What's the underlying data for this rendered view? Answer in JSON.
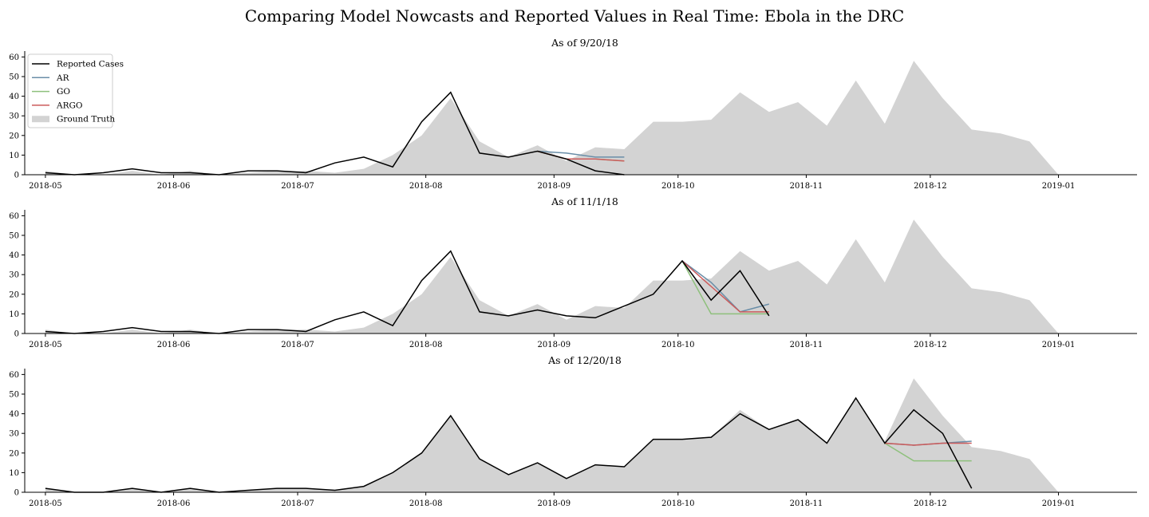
{
  "title": "Comparing Model Nowcasts and Reported Values in Real Time: Ebola in the DRC",
  "colors": {
    "reported": "#000000",
    "ar": "#6a8ea8",
    "go": "#8ec07c",
    "argo": "#cc5b5b",
    "ground_truth": "#d3d3d3"
  },
  "chart_data": [
    {
      "type": "line",
      "title": "As of 9/20/18",
      "xlabel": "",
      "ylabel": "",
      "ylim": [
        0,
        63
      ],
      "grid": false,
      "legend": "top-left",
      "x_ticks": [
        "2018-05",
        "2018-06",
        "2018-07",
        "2018-08",
        "2018-09",
        "2018-10",
        "2018-11",
        "2018-12",
        "2019-01"
      ],
      "y_ticks": [
        0,
        10,
        20,
        30,
        40,
        50,
        60
      ],
      "legend_entries": [
        "Reported Cases",
        "AR",
        "GO",
        "ARGO",
        "Ground Truth"
      ],
      "ground_truth": {
        "x": [
          "2018-05-01",
          "2018-05-08",
          "2018-05-15",
          "2018-05-22",
          "2018-05-29",
          "2018-06-05",
          "2018-06-12",
          "2018-06-19",
          "2018-06-26",
          "2018-07-03",
          "2018-07-10",
          "2018-07-17",
          "2018-07-24",
          "2018-07-31",
          "2018-08-07",
          "2018-08-14",
          "2018-08-21",
          "2018-08-28",
          "2018-09-04",
          "2018-09-11",
          "2018-09-18",
          "2018-09-25",
          "2018-10-02",
          "2018-10-09",
          "2018-10-16",
          "2018-10-23",
          "2018-10-30",
          "2018-11-06",
          "2018-11-13",
          "2018-11-20",
          "2018-11-27",
          "2018-12-04",
          "2018-12-11",
          "2018-12-18",
          "2018-12-25",
          "2019-01-01"
        ],
        "values": [
          2,
          0,
          0,
          2,
          0,
          2,
          0,
          1,
          2,
          2,
          1,
          3,
          10,
          20,
          39,
          17,
          9,
          15,
          7,
          14,
          13,
          27,
          27,
          28,
          42,
          32,
          37,
          25,
          48,
          26,
          58,
          39,
          23,
          21,
          17,
          0
        ]
      },
      "series": [
        {
          "name": "Reported Cases",
          "x": [
            "2018-05-01",
            "2018-05-08",
            "2018-05-15",
            "2018-05-22",
            "2018-05-29",
            "2018-06-05",
            "2018-06-12",
            "2018-06-19",
            "2018-06-26",
            "2018-07-03",
            "2018-07-10",
            "2018-07-17",
            "2018-07-24",
            "2018-07-31",
            "2018-08-07",
            "2018-08-14",
            "2018-08-21",
            "2018-08-28",
            "2018-09-04",
            "2018-09-11",
            "2018-09-18"
          ],
          "values": [
            1,
            0,
            1,
            3,
            1,
            1,
            0,
            2,
            2,
            1,
            6,
            9,
            4,
            27,
            42,
            11,
            9,
            12,
            8,
            2,
            0
          ]
        },
        {
          "name": "AR",
          "x": [
            "2018-08-28",
            "2018-09-04",
            "2018-09-11",
            "2018-09-18"
          ],
          "values": [
            12,
            11,
            9,
            9
          ]
        },
        {
          "name": "GO",
          "x": [
            "2018-08-28",
            "2018-09-04",
            "2018-09-11",
            "2018-09-18"
          ],
          "values": [
            12,
            8,
            8,
            7
          ]
        },
        {
          "name": "ARGO",
          "x": [
            "2018-08-28",
            "2018-09-04",
            "2018-09-11",
            "2018-09-18"
          ],
          "values": [
            12,
            8,
            8,
            7
          ]
        }
      ]
    },
    {
      "type": "line",
      "title": "As of 11/1/18",
      "xlabel": "",
      "ylabel": "",
      "ylim": [
        0,
        63
      ],
      "grid": false,
      "x_ticks": [
        "2018-05",
        "2018-06",
        "2018-07",
        "2018-08",
        "2018-09",
        "2018-10",
        "2018-11",
        "2018-12",
        "2019-01"
      ],
      "y_ticks": [
        0,
        10,
        20,
        30,
        40,
        50,
        60
      ],
      "ground_truth": {
        "x": [
          "2018-05-01",
          "2018-05-08",
          "2018-05-15",
          "2018-05-22",
          "2018-05-29",
          "2018-06-05",
          "2018-06-12",
          "2018-06-19",
          "2018-06-26",
          "2018-07-03",
          "2018-07-10",
          "2018-07-17",
          "2018-07-24",
          "2018-07-31",
          "2018-08-07",
          "2018-08-14",
          "2018-08-21",
          "2018-08-28",
          "2018-09-04",
          "2018-09-11",
          "2018-09-18",
          "2018-09-25",
          "2018-10-02",
          "2018-10-09",
          "2018-10-16",
          "2018-10-23",
          "2018-10-30",
          "2018-11-06",
          "2018-11-13",
          "2018-11-20",
          "2018-11-27",
          "2018-12-04",
          "2018-12-11",
          "2018-12-18",
          "2018-12-25",
          "2019-01-01"
        ],
        "values": [
          2,
          0,
          0,
          2,
          0,
          2,
          0,
          1,
          2,
          2,
          1,
          3,
          10,
          20,
          39,
          17,
          9,
          15,
          7,
          14,
          13,
          27,
          27,
          28,
          42,
          32,
          37,
          25,
          48,
          26,
          58,
          39,
          23,
          21,
          17,
          0
        ]
      },
      "series": [
        {
          "name": "Reported Cases",
          "x": [
            "2018-05-01",
            "2018-05-08",
            "2018-05-15",
            "2018-05-22",
            "2018-05-29",
            "2018-06-05",
            "2018-06-12",
            "2018-06-19",
            "2018-06-26",
            "2018-07-03",
            "2018-07-10",
            "2018-07-17",
            "2018-07-24",
            "2018-07-31",
            "2018-08-07",
            "2018-08-14",
            "2018-08-21",
            "2018-08-28",
            "2018-09-04",
            "2018-09-11",
            "2018-09-18",
            "2018-09-25",
            "2018-10-02",
            "2018-10-09",
            "2018-10-16",
            "2018-10-23"
          ],
          "values": [
            1,
            0,
            1,
            3,
            1,
            1,
            0,
            2,
            2,
            1,
            7,
            11,
            4,
            27,
            42,
            11,
            9,
            12,
            9,
            8,
            14,
            20,
            37,
            17,
            32,
            9
          ]
        },
        {
          "name": "AR",
          "x": [
            "2018-10-02",
            "2018-10-09",
            "2018-10-16",
            "2018-10-23"
          ],
          "values": [
            37,
            26,
            11,
            15
          ]
        },
        {
          "name": "GO",
          "x": [
            "2018-10-02",
            "2018-10-09",
            "2018-10-16",
            "2018-10-23"
          ],
          "values": [
            37,
            10,
            10,
            10
          ]
        },
        {
          "name": "ARGO",
          "x": [
            "2018-10-02",
            "2018-10-09",
            "2018-10-16",
            "2018-10-23"
          ],
          "values": [
            37,
            24,
            11,
            11
          ]
        }
      ]
    },
    {
      "type": "line",
      "title": "As of 12/20/18",
      "xlabel": "",
      "ylabel": "",
      "ylim": [
        0,
        63
      ],
      "grid": false,
      "x_ticks": [
        "2018-05",
        "2018-06",
        "2018-07",
        "2018-08",
        "2018-09",
        "2018-10",
        "2018-11",
        "2018-12",
        "2019-01"
      ],
      "y_ticks": [
        0,
        10,
        20,
        30,
        40,
        50,
        60
      ],
      "ground_truth": {
        "x": [
          "2018-05-01",
          "2018-05-08",
          "2018-05-15",
          "2018-05-22",
          "2018-05-29",
          "2018-06-05",
          "2018-06-12",
          "2018-06-19",
          "2018-06-26",
          "2018-07-03",
          "2018-07-10",
          "2018-07-17",
          "2018-07-24",
          "2018-07-31",
          "2018-08-07",
          "2018-08-14",
          "2018-08-21",
          "2018-08-28",
          "2018-09-04",
          "2018-09-11",
          "2018-09-18",
          "2018-09-25",
          "2018-10-02",
          "2018-10-09",
          "2018-10-16",
          "2018-10-23",
          "2018-10-30",
          "2018-11-06",
          "2018-11-13",
          "2018-11-20",
          "2018-11-27",
          "2018-12-04",
          "2018-12-11",
          "2018-12-18",
          "2018-12-25",
          "2019-01-01"
        ],
        "values": [
          2,
          0,
          0,
          2,
          0,
          2,
          0,
          1,
          2,
          2,
          1,
          3,
          10,
          20,
          39,
          17,
          9,
          15,
          7,
          14,
          13,
          27,
          27,
          28,
          42,
          32,
          37,
          25,
          48,
          26,
          58,
          39,
          23,
          21,
          17,
          0
        ]
      },
      "series": [
        {
          "name": "Reported Cases",
          "x": [
            "2018-05-01",
            "2018-05-08",
            "2018-05-15",
            "2018-05-22",
            "2018-05-29",
            "2018-06-05",
            "2018-06-12",
            "2018-06-19",
            "2018-06-26",
            "2018-07-03",
            "2018-07-10",
            "2018-07-17",
            "2018-07-24",
            "2018-07-31",
            "2018-08-07",
            "2018-08-14",
            "2018-08-21",
            "2018-08-28",
            "2018-09-04",
            "2018-09-11",
            "2018-09-18",
            "2018-09-25",
            "2018-10-02",
            "2018-10-09",
            "2018-10-16",
            "2018-10-23",
            "2018-10-30",
            "2018-11-06",
            "2018-11-13",
            "2018-11-20",
            "2018-11-27",
            "2018-12-04",
            "2018-12-11"
          ],
          "values": [
            2,
            0,
            0,
            2,
            0,
            2,
            0,
            1,
            2,
            2,
            1,
            3,
            10,
            20,
            39,
            17,
            9,
            15,
            7,
            14,
            13,
            27,
            27,
            28,
            40,
            32,
            37,
            25,
            48,
            25,
            42,
            30,
            2
          ]
        },
        {
          "name": "AR",
          "x": [
            "2018-11-20",
            "2018-11-27",
            "2018-12-04",
            "2018-12-11"
          ],
          "values": [
            25,
            24,
            25,
            26
          ]
        },
        {
          "name": "GO",
          "x": [
            "2018-11-20",
            "2018-11-27",
            "2018-12-04",
            "2018-12-11"
          ],
          "values": [
            25,
            16,
            16,
            16
          ]
        },
        {
          "name": "ARGO",
          "x": [
            "2018-11-20",
            "2018-11-27",
            "2018-12-04",
            "2018-12-11"
          ],
          "values": [
            25,
            24,
            25,
            25
          ]
        }
      ]
    }
  ]
}
